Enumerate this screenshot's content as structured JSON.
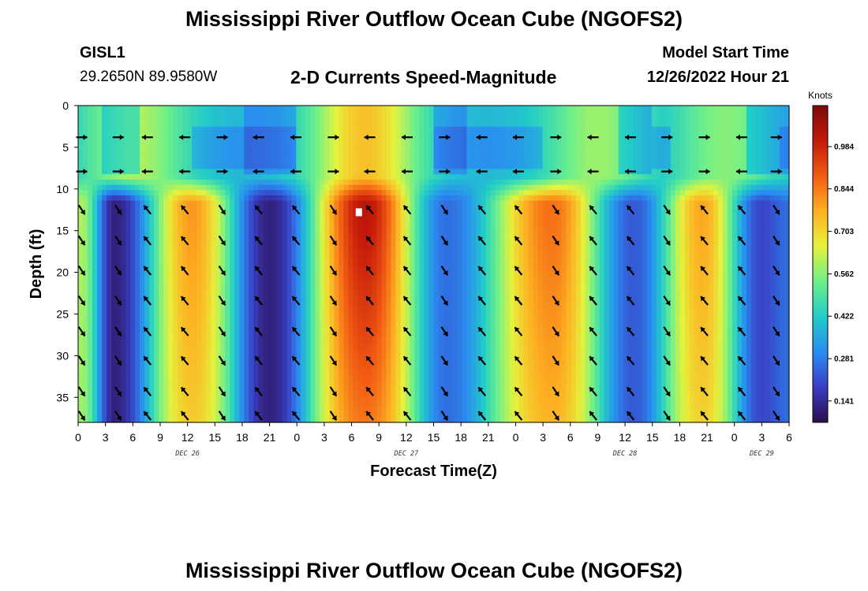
{
  "page": {
    "title": "Mississippi River Outflow Ocean Cube (NGOFS2)",
    "title_bottom": "Mississippi River Outflow Ocean Cube (NGOFS2)",
    "station_id": "GISL1",
    "station_coords": "29.2650N  89.9580W",
    "subtitle": "2-D Currents Speed-Magnitude",
    "model_start_label": "Model Start Time",
    "model_start_value": "12/26/2022 Hour 21"
  },
  "chart_data": {
    "type": "heatmap",
    "title": "2-D Currents Speed-Magnitude",
    "xlabel": "Forecast Time(Z)",
    "ylabel": "Depth (ft)",
    "x_range_hours": [
      0,
      78
    ],
    "y_range_ft": [
      0,
      38
    ],
    "x_ticks": [
      "0",
      "3",
      "6",
      "9",
      "12",
      "15",
      "18",
      "21",
      "0",
      "3",
      "6",
      "9",
      "12",
      "15",
      "18",
      "21",
      "0",
      "3",
      "6",
      "9",
      "12",
      "15",
      "18",
      "21",
      "0",
      "3",
      "6"
    ],
    "y_ticks": [
      0,
      5,
      10,
      15,
      20,
      25,
      30,
      35
    ],
    "day_labels": [
      {
        "label": "DEC 26",
        "hour": 12
      },
      {
        "label": "DEC 27",
        "hour": 36
      },
      {
        "label": "DEC 28",
        "hour": 60
      },
      {
        "label": "DEC 29",
        "hour": 75
      }
    ],
    "colorbar": {
      "unit": "Knots",
      "ticks": [
        0.141,
        0.281,
        0.422,
        0.562,
        0.703,
        0.844,
        0.984
      ],
      "range": [
        0.07,
        1.12
      ],
      "colors": [
        "#2a0e4a",
        "#3a3dc2",
        "#2a8cf0",
        "#22ccc8",
        "#6ef08a",
        "#e6f23c",
        "#fdb022",
        "#f25c14",
        "#c41a0a",
        "#7a0a0a"
      ]
    },
    "speed_peaks": [
      {
        "hour": 0.3,
        "speed": 0.6
      },
      {
        "hour": 4,
        "speed": 0.12
      },
      {
        "hour": 12.5,
        "speed": 0.8
      },
      {
        "hour": 21,
        "speed": 0.12
      },
      {
        "hour": 31.5,
        "speed": 1.02
      },
      {
        "hour": 40.5,
        "speed": 0.26
      },
      {
        "hour": 52,
        "speed": 0.86
      },
      {
        "hour": 61,
        "speed": 0.23
      },
      {
        "hour": 68.5,
        "speed": 0.78
      },
      {
        "hour": 75,
        "speed": 0.2
      },
      {
        "hour": 78,
        "speed": 0.26
      }
    ],
    "surface_layer": {
      "top_depth_ft": 0,
      "bottom_depth_ft": 11,
      "transition_depth_ft": 10.5,
      "peaks": [
        {
          "hour": 6.2,
          "speed": 0.6
        },
        {
          "hour": 31.5,
          "speed": 0.74
        },
        {
          "hour": 57,
          "speed": 0.58
        },
        {
          "hour": 71,
          "speed": 0.56
        }
      ]
    },
    "vector_rows_ft": [
      3.8,
      7.9,
      12.5,
      16.2,
      19.8,
      23.4,
      27.1,
      30.6,
      34.3,
      37.2
    ],
    "vector_columns_hours": [
      0.4,
      4.4,
      7.6,
      11.7,
      15.8,
      19.8,
      23.9,
      28,
      32,
      36.1,
      40.2,
      44.3,
      48.3,
      52.4,
      56.5,
      60.6,
      64.6,
      68.7,
      72.8,
      76.6
    ],
    "marker": {
      "hour": 30.8,
      "depth_ft": 12.8
    }
  }
}
